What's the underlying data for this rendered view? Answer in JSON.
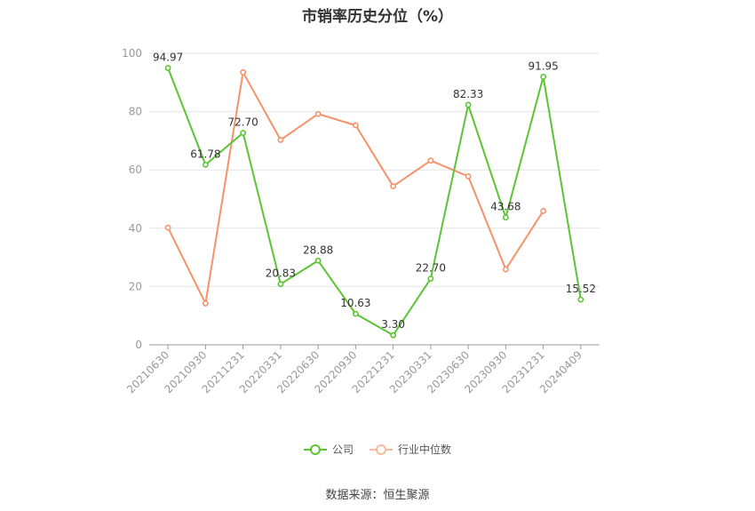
{
  "chart_data": {
    "type": "line",
    "title": "市销率历史分位（%）",
    "categories": [
      "20210630",
      "20210930",
      "20211231",
      "20220331",
      "20220630",
      "20220930",
      "20221231",
      "20230331",
      "20230630",
      "20230930",
      "20231231",
      "20240409"
    ],
    "ylim": [
      0,
      100
    ],
    "yticks": [
      0,
      20,
      40,
      60,
      80,
      100
    ],
    "grid": true,
    "legend_position": "bottom",
    "series": [
      {
        "name": "公司",
        "color": "#5ac532",
        "values": [
          94.97,
          61.78,
          72.7,
          20.83,
          28.88,
          10.63,
          3.3,
          22.7,
          82.33,
          43.68,
          91.95,
          15.52
        ],
        "labels": [
          "94.97",
          "61.78",
          "72.70",
          "20.83",
          "28.88",
          "10.63",
          "3.30",
          "22.70",
          "82.33",
          "43.68",
          "91.95",
          "15.52"
        ]
      },
      {
        "name": "行业中位数",
        "color": "#f5926a",
        "values": [
          40.2,
          14.2,
          93.5,
          70.3,
          79.2,
          75.3,
          54.4,
          63.2,
          57.8,
          25.9,
          45.9,
          null
        ]
      }
    ]
  },
  "source": "数据来源：恒生聚源"
}
